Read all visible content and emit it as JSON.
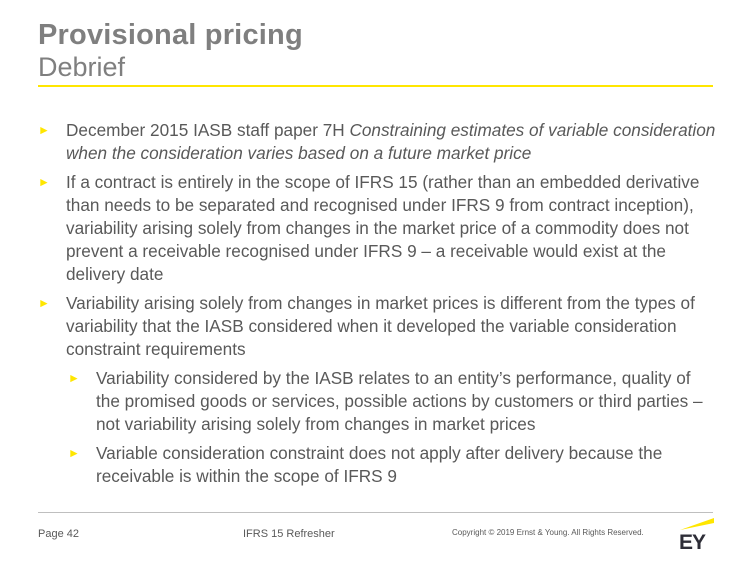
{
  "title": {
    "main": "Provisional pricing",
    "sub": "Debrief"
  },
  "bullets": [
    {
      "text_plain": "December 2015 IASB staff paper 7H ",
      "text_italic": "Constraining estimates of variable consideration when the consideration varies based on a future market price"
    },
    {
      "text": "If a contract is entirely in the scope of IFRS 15 (rather than an embedded derivative than needs to be separated and recognised under IFRS 9 from contract inception), variability arising solely from changes in the market price of a commodity does not prevent a receivable recognised under IFRS 9 – a receivable would exist at the delivery date"
    },
    {
      "text": "Variability arising solely from changes in market prices is different from the types of variability that the IASB considered when it developed the variable consideration constraint requirements",
      "sub": [
        "Variability considered by the IASB relates to an entity’s performance, quality of the promised goods or services, possible actions by customers or third parties – not variability arising solely from changes in market prices",
        "Variable consideration constraint does not apply after delivery because the receivable is within the scope of IFRS 9"
      ]
    }
  ],
  "bullet_marker": "►",
  "footer": {
    "page": "Page 42",
    "deck": "IFRS 15 Refresher",
    "copyright": "Copyright © 2019 Ernst & Young. All Rights Reserved."
  },
  "logo": {
    "text": "EY"
  },
  "colors": {
    "accent": "#ffe600",
    "text": "#595959",
    "title": "#7f7f7f"
  }
}
